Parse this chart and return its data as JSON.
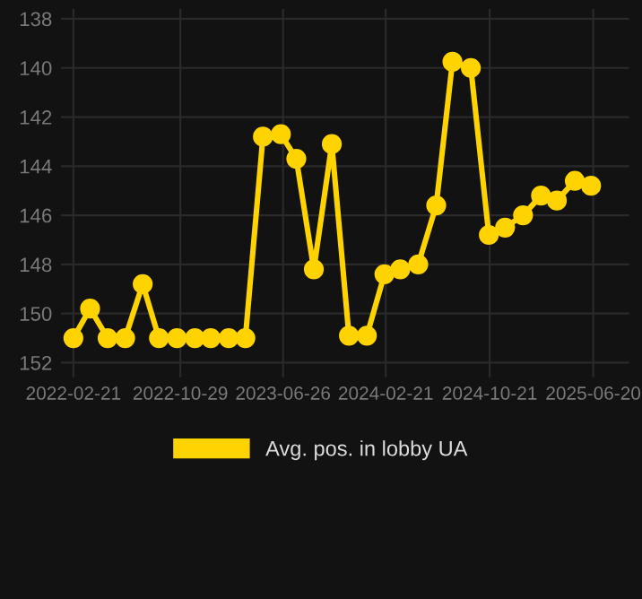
{
  "chart_data": {
    "type": "line",
    "x": [
      "2022-02-21",
      "2022-04-01",
      "2022-05-12",
      "2022-06-22",
      "2022-08-02",
      "2022-09-09",
      "2022-10-21",
      "2022-12-02",
      "2023-01-08",
      "2023-02-19",
      "2023-03-30",
      "2023-05-10",
      "2023-06-21",
      "2023-07-27",
      "2023-09-06",
      "2023-10-18",
      "2023-11-27",
      "2024-01-08",
      "2024-02-18",
      "2024-03-26",
      "2024-05-07",
      "2024-06-18",
      "2024-07-26",
      "2024-09-07",
      "2024-10-19",
      "2024-11-26",
      "2025-01-07",
      "2025-02-18",
      "2025-03-27",
      "2025-05-08",
      "2025-06-15"
    ],
    "series": [
      {
        "name": "Avg. pos. in lobby UA",
        "color": "#ffd300",
        "values": [
          151,
          149.8,
          151,
          151,
          148.8,
          151,
          151,
          151,
          151,
          151,
          151,
          142.8,
          142.7,
          143.7,
          148.2,
          143.1,
          150.9,
          150.9,
          148.4,
          148.2,
          148.0,
          145.6,
          139.75,
          140.0,
          146.8,
          146.5,
          146.0,
          145.2,
          145.4,
          144.6,
          144.8
        ]
      }
    ],
    "xlim": [
      "2022-01-23",
      "2025-09-12"
    ],
    "xticks": [
      "2022-02-21",
      "2022-10-29",
      "2023-06-26",
      "2024-02-21",
      "2024-10-21",
      "2025-06-20"
    ],
    "ylim": [
      152.6,
      137.6
    ],
    "yticks": [
      138,
      140,
      142,
      144,
      146,
      148,
      150,
      152
    ],
    "grid": true,
    "legend": "bottom",
    "marker": "circle",
    "line_style": "solid"
  }
}
